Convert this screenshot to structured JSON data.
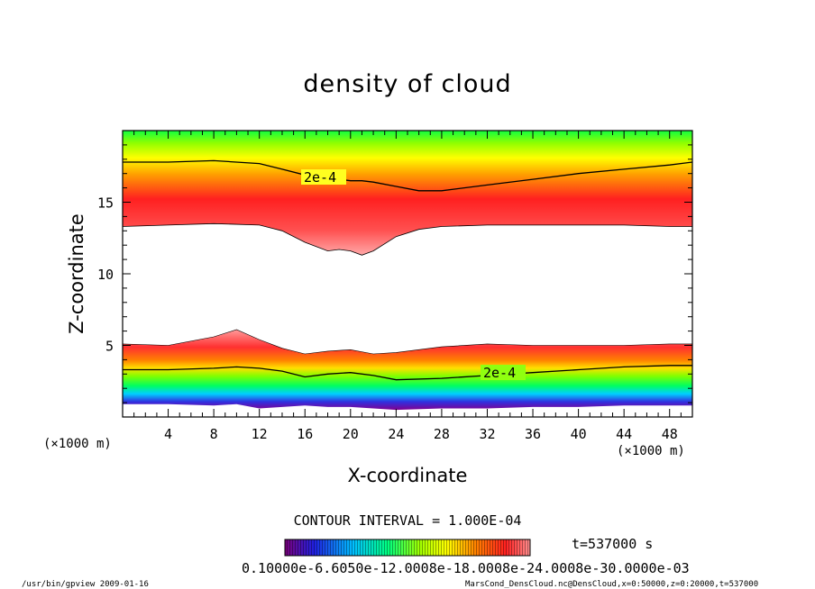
{
  "chart_data": {
    "type": "heatmap",
    "title": "density of cloud",
    "xlabel": "X-coordinate",
    "ylabel": "Z-coordinate",
    "x_unit": "(×1000 m)",
    "z_unit": "(×1000 m)",
    "xlim": [
      0,
      50
    ],
    "ylim": [
      0,
      20
    ],
    "x_ticks": [
      4,
      8,
      12,
      16,
      20,
      24,
      28,
      32,
      36,
      40,
      44,
      48
    ],
    "y_ticks": [
      5,
      10,
      15
    ],
    "contour_interval": "CONTOUR INTERVAL = 1.000E-04",
    "contour_labels": [
      "2e-4",
      "2e-4"
    ],
    "time_label": "t=537000 s",
    "colorbar_label_text": "0.10000e-6.6050e-12.0008e-18.0008e-24.0008e-30.0000e-03",
    "colors": {
      "scale": [
        "#7a007a",
        "#2020e0",
        "#00c0ff",
        "#00ff80",
        "#40ff00",
        "#d0ff00",
        "#ffff00",
        "#ff8000",
        "#ff2020",
        "#ff9090"
      ]
    },
    "upper_band": {
      "x": [
        0,
        4,
        8,
        12,
        14,
        16,
        18,
        19,
        20,
        21,
        22,
        24,
        26,
        28,
        32,
        36,
        40,
        44,
        48,
        50
      ],
      "z_bottom": [
        13.3,
        13.4,
        13.5,
        13.4,
        13.0,
        12.2,
        11.6,
        11.7,
        11.6,
        11.3,
        11.6,
        12.6,
        13.1,
        13.3,
        13.4,
        13.4,
        13.4,
        13.4,
        13.3,
        13.3
      ],
      "z_contour_2e4": [
        17.8,
        17.8,
        17.9,
        17.7,
        17.3,
        16.9,
        16.7,
        16.6,
        16.5,
        16.5,
        16.4,
        16.1,
        15.8,
        15.8,
        16.2,
        16.6,
        17.0,
        17.3,
        17.6,
        17.8
      ]
    },
    "lower_band": {
      "x": [
        0,
        4,
        8,
        10,
        12,
        14,
        16,
        18,
        20,
        22,
        24,
        28,
        32,
        36,
        40,
        44,
        48,
        50
      ],
      "z_top": [
        5.1,
        5.0,
        5.6,
        6.1,
        5.4,
        4.8,
        4.4,
        4.6,
        4.7,
        4.4,
        4.5,
        4.9,
        5.1,
        5.0,
        5.0,
        5.0,
        5.1,
        5.1
      ],
      "z_contour_2e4": [
        3.3,
        3.3,
        3.4,
        3.5,
        3.4,
        3.2,
        2.8,
        3.0,
        3.1,
        2.9,
        2.6,
        2.7,
        2.9,
        3.1,
        3.3,
        3.5,
        3.6,
        3.6
      ],
      "z_bottom": [
        0.9,
        0.9,
        0.8,
        0.9,
        0.6,
        0.7,
        0.8,
        0.7,
        0.7,
        0.6,
        0.5,
        0.6,
        0.6,
        0.7,
        0.7,
        0.8,
        0.8,
        0.8
      ]
    }
  },
  "footer": {
    "program": "/usr/bin/gpview   2009-01-16",
    "source": "MarsCond_DensCloud.nc@DensCloud,x=0:50000,z=0:20000,t=537000"
  }
}
